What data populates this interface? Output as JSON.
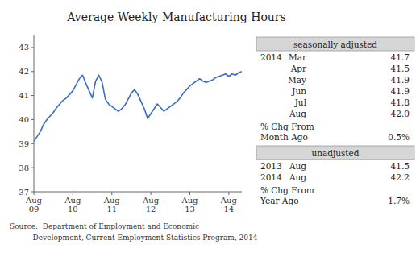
{
  "chart_data": {
    "type": "line",
    "title": "Average Weekly Manufacturing Hours",
    "categories": [
      "Aug\n09",
      null,
      null,
      null,
      null,
      null,
      null,
      null,
      null,
      null,
      null,
      null,
      "Aug\n10",
      null,
      null,
      null,
      null,
      null,
      null,
      null,
      null,
      null,
      null,
      null,
      "Aug\n11",
      null,
      null,
      null,
      null,
      null,
      null,
      null,
      null,
      null,
      null,
      null,
      "Aug\n12",
      null,
      null,
      null,
      null,
      null,
      null,
      null,
      null,
      null,
      null,
      null,
      "Aug\n13",
      null,
      null,
      null,
      null,
      null,
      null,
      null,
      null,
      null,
      null,
      null,
      "Aug\n14",
      null,
      null,
      null,
      null
    ],
    "values": [
      39.1,
      39.3,
      39.5,
      39.8,
      40.0,
      40.15,
      40.3,
      40.5,
      40.65,
      40.8,
      40.9,
      41.05,
      41.2,
      41.45,
      41.7,
      41.85,
      41.5,
      41.2,
      40.9,
      41.6,
      41.85,
      41.55,
      40.85,
      40.65,
      40.55,
      40.45,
      40.35,
      40.45,
      40.6,
      40.85,
      41.1,
      41.25,
      41.05,
      40.75,
      40.45,
      40.05,
      40.25,
      40.45,
      40.65,
      40.5,
      40.35,
      40.45,
      40.55,
      40.65,
      40.75,
      40.9,
      41.1,
      41.25,
      41.4,
      41.5,
      41.6,
      41.7,
      41.6,
      41.55,
      41.6,
      41.65,
      41.75,
      41.8,
      41.85,
      41.9,
      41.8,
      41.9,
      41.85,
      41.95,
      42.0
    ],
    "color": "#3a6dbf",
    "ylim": [
      37,
      43.5
    ],
    "yticks": [
      37,
      38,
      39,
      40,
      41,
      42,
      43
    ],
    "grid": false,
    "panel": {
      "seasonally_adjusted": {
        "header": "seasonally adjusted",
        "year": "2014",
        "rows": [
          [
            "Mar",
            "41.7"
          ],
          [
            "Apr",
            "41.5"
          ],
          [
            "May",
            "41.9"
          ],
          [
            "Jun",
            "41.9"
          ],
          [
            "Jul",
            "41.8"
          ],
          [
            "Aug",
            "42.0"
          ]
        ],
        "change_label": [
          "% Chg From",
          "Month Ago"
        ],
        "change_value": "0.5%"
      },
      "unadjusted": {
        "header": "unadjusted",
        "rows": [
          [
            "2013",
            "Aug",
            "41.5"
          ],
          [
            "2014",
            "Aug",
            "42.2"
          ]
        ],
        "change_label": [
          "% Chg From",
          "Year Ago"
        ],
        "change_value": "1.7%"
      }
    },
    "source": [
      "Source:  Department of Employment and Economic",
      "          Development, Current Employment Statistics Program, 2014"
    ]
  }
}
